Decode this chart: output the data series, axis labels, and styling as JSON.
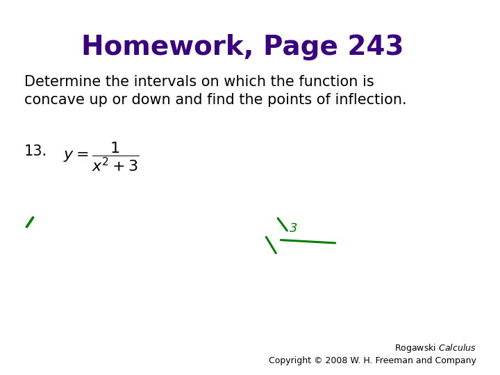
{
  "title": "Homework, Page 243",
  "title_color": "#3B0080",
  "title_fontsize": 28,
  "body_text": "Determine the intervals on which the function is\nconcave up or down and find the points of inflection.",
  "body_fontsize": 15,
  "body_color": "#000000",
  "problem_number": "13.",
  "copyright_line1": "Rogawski ",
  "copyright_line1_italic": "Calculus",
  "copyright_line2": "Copyright © 2008 W. H. Freeman and Company",
  "copyright_fontsize": 9,
  "background_color": "#ffffff",
  "handwriting_color": "#008000"
}
